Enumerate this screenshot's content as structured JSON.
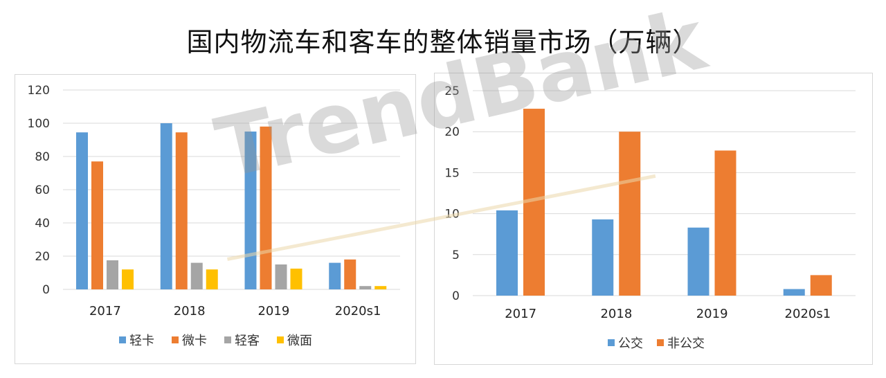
{
  "title": "国内物流车和客车的整体销量市场（万辆）",
  "watermark": "TrendBank",
  "colors": {
    "blue": "#5b9bd5",
    "orange": "#ed7d31",
    "gray": "#a5a5a5",
    "yellow": "#ffc000"
  },
  "chart_data": [
    {
      "type": "bar",
      "categories": [
        "2017",
        "2018",
        "2019",
        "2020s1"
      ],
      "ylim": [
        0,
        120
      ],
      "yticks": [
        "0",
        "20",
        "40",
        "60",
        "80",
        "100",
        "120"
      ],
      "series": [
        {
          "name": "轻卡",
          "color": "#5b9bd5",
          "values": [
            94.5,
            100,
            95,
            16
          ]
        },
        {
          "name": "微卡",
          "color": "#ed7d31",
          "values": [
            77,
            94.5,
            98,
            18
          ]
        },
        {
          "name": "轻客",
          "color": "#a5a5a5",
          "values": [
            17.5,
            16,
            15,
            2
          ]
        },
        {
          "name": "微面",
          "color": "#ffc000",
          "values": [
            12,
            12,
            12.5,
            2
          ]
        }
      ],
      "legend_position": "bottom"
    },
    {
      "type": "bar",
      "categories": [
        "2017",
        "2018",
        "2019",
        "2020s1"
      ],
      "ylim": [
        0,
        25
      ],
      "yticks": [
        "0",
        "5",
        "10",
        "15",
        "20",
        "25"
      ],
      "series": [
        {
          "name": "公交",
          "color": "#5b9bd5",
          "values": [
            10.4,
            9.3,
            8.3,
            0.8
          ]
        },
        {
          "name": "非公交",
          "color": "#ed7d31",
          "values": [
            22.8,
            20,
            17.7,
            2.5
          ]
        }
      ],
      "legend_position": "bottom"
    }
  ]
}
